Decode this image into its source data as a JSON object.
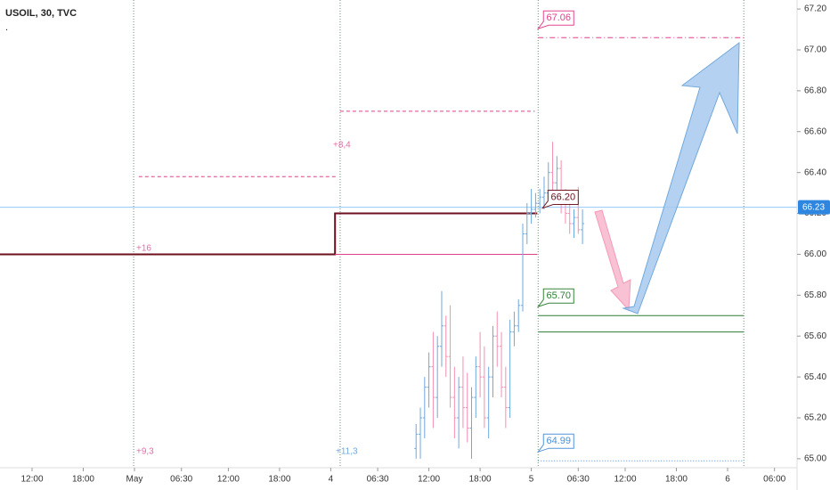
{
  "chart_data": {
    "type": "ohlc",
    "title": "USOIL, 30, TVC",
    "subtitle": ".",
    "xlim": [
      -3.757,
      89.64
    ],
    "ylim": [
      64.956,
      67.244
    ],
    "xticks": [
      {
        "value": 0,
        "label": "12:00"
      },
      {
        "value": 6,
        "label": "18:00"
      },
      {
        "value": 12,
        "label": "May"
      },
      {
        "value": 17.5,
        "label": "06:30"
      },
      {
        "value": 23,
        "label": "12:00"
      },
      {
        "value": 29,
        "label": "18:00"
      },
      {
        "value": 35,
        "label": "4"
      },
      {
        "value": 40.5,
        "label": "06:30"
      },
      {
        "value": 46.5,
        "label": "12:00"
      },
      {
        "value": 52.5,
        "label": "18:00"
      },
      {
        "value": 58.5,
        "label": "5"
      },
      {
        "value": 64,
        "label": "06:30"
      },
      {
        "value": 69.5,
        "label": "12:00"
      },
      {
        "value": 75.5,
        "label": "18:00"
      },
      {
        "value": 81.5,
        "label": "6"
      },
      {
        "value": 87,
        "label": "06:00"
      }
    ],
    "yticks": [
      {
        "value": 65,
        "label": "65.00"
      },
      {
        "value": 65.2,
        "label": "65.20"
      },
      {
        "value": 65.4,
        "label": "65.40"
      },
      {
        "value": 65.6,
        "label": "65.60"
      },
      {
        "value": 65.8,
        "label": "65.80"
      },
      {
        "value": 66,
        "label": "66.00"
      },
      {
        "value": 66.2,
        "label": "66.20"
      },
      {
        "value": 66.4,
        "label": "66.40"
      },
      {
        "value": 66.6,
        "label": "66.60"
      },
      {
        "value": 66.8,
        "label": "66.80"
      },
      {
        "value": 67,
        "label": "67.00"
      },
      {
        "value": 67.2,
        "label": "67.20"
      }
    ],
    "up_color": "#6fa8dc",
    "down_color": "#f48fb1",
    "x": [
      45,
      45.5,
      46,
      46.5,
      47,
      47.5,
      48,
      48.5,
      49,
      49.5,
      50,
      50.5,
      51,
      51.5,
      52,
      52.5,
      53,
      53.5,
      54,
      54.5,
      55,
      55.5,
      56,
      56.5,
      57,
      57.5,
      58,
      58.5,
      59,
      59.5,
      60,
      60.5,
      61,
      61.5,
      62,
      62.5,
      63,
      63.5,
      64,
      64.5
    ],
    "open": [
      65.05,
      65.12,
      65.2,
      65.35,
      65.45,
      65.3,
      65.55,
      65.65,
      65.5,
      65.3,
      65.2,
      65.35,
      65.25,
      65.15,
      65.3,
      65.45,
      65.4,
      65.2,
      65.4,
      65.6,
      65.55,
      65.35,
      65.25,
      65.62,
      65.65,
      65.75,
      66.1,
      66.2,
      66.22,
      66.25,
      66.28,
      66.3,
      66.4,
      66.35,
      66.42,
      66.25,
      66.2,
      66.15,
      66.18,
      66.12
    ],
    "high": [
      65.17,
      65.25,
      65.4,
      65.52,
      65.62,
      65.6,
      65.82,
      65.7,
      65.75,
      65.45,
      65.4,
      65.5,
      65.42,
      65.35,
      65.5,
      65.62,
      65.55,
      65.45,
      65.65,
      65.72,
      65.62,
      65.45,
      65.68,
      65.72,
      65.78,
      66.15,
      66.25,
      66.32,
      66.3,
      66.32,
      66.38,
      66.45,
      66.55,
      66.48,
      66.46,
      66.32,
      66.28,
      66.22,
      66.33,
      66.22
    ],
    "low": [
      65.0,
      65.0,
      65.1,
      65.25,
      65.15,
      65.2,
      65.45,
      65.4,
      65.25,
      65.1,
      65.05,
      65.15,
      65.08,
      65.0,
      65.2,
      65.3,
      65.15,
      65.1,
      65.3,
      65.45,
      65.3,
      65.15,
      65.2,
      65.55,
      65.62,
      65.72,
      66.05,
      66.15,
      66.18,
      66.2,
      66.22,
      66.25,
      66.3,
      66.28,
      66.2,
      66.15,
      66.1,
      66.08,
      66.1,
      66.05
    ],
    "close": [
      65.12,
      65.2,
      65.35,
      65.45,
      65.3,
      65.55,
      65.65,
      65.5,
      65.3,
      65.2,
      65.35,
      65.25,
      65.15,
      65.3,
      65.45,
      65.4,
      65.2,
      65.4,
      65.6,
      65.55,
      65.35,
      65.25,
      65.62,
      65.65,
      65.75,
      66.1,
      66.2,
      66.22,
      66.25,
      66.28,
      66.3,
      66.4,
      66.35,
      66.42,
      66.25,
      66.2,
      66.15,
      66.18,
      66.12,
      66.15
    ],
    "step_line": {
      "color": "#6d0f1c",
      "label": "66.20",
      "x": [
        -3.757,
        35.5,
        35.5,
        59.2
      ],
      "values": [
        66,
        66,
        66.2,
        66.2
      ]
    },
    "levels": [
      {
        "value": 66,
        "x": [
          35.5,
          59.2
        ],
        "color": "#e0408a",
        "style": "solid"
      },
      {
        "value": 66.38,
        "x": [
          12.5,
          35.8
        ],
        "color": "#e0408a",
        "style": "dashed"
      },
      {
        "value": 66.7,
        "x": [
          36.1,
          58.9
        ],
        "color": "#e0408a",
        "style": "dashed"
      },
      {
        "value": 67.06,
        "label": "67.06",
        "x": [
          59.3,
          83.4
        ],
        "color": "#e0408a",
        "style": "dashdot"
      },
      {
        "value": 65.7,
        "label": "65.70",
        "x": [
          59.3,
          83.4
        ],
        "color": "#2e7d32",
        "style": "solid"
      },
      {
        "value": 65.62,
        "x": [
          59.3,
          83.4
        ],
        "color": "#2e7d32",
        "style": "solid"
      },
      {
        "value": 64.99,
        "label": "64.99",
        "x": [
          59.3,
          83.4
        ],
        "color": "#4a90d9",
        "style": "dotted"
      }
    ],
    "vlines": [
      11.9,
      36.1,
      59.3,
      83.4
    ],
    "last_price": 66.23,
    "last_price_color": "#2e86de",
    "annotations": [
      {
        "text": "+16",
        "color": "#e06fa8"
      },
      {
        "text": "+8,4",
        "color": "#e06fa8"
      },
      {
        "text": "+9,3",
        "color": "#e06fa8"
      },
      {
        "text": "+11,3",
        "color": "#6fa8dc"
      }
    ]
  }
}
